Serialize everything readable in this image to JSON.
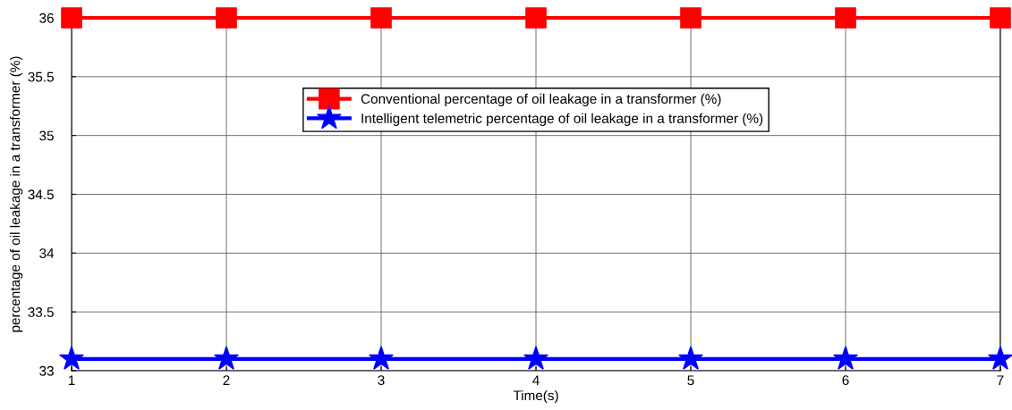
{
  "chart_data": {
    "type": "line",
    "xlabel": "Time(s)",
    "ylabel": "percentage of oil leakage in a transformer (%)",
    "x": [
      1,
      2,
      3,
      4,
      5,
      6,
      7
    ],
    "series": [
      {
        "name": "Conventional percentage of oil leakage in a transformer (%)",
        "color": "#ff0000",
        "marker": "square",
        "values": [
          36,
          36,
          36,
          36,
          36,
          36,
          36
        ]
      },
      {
        "name": "Intelligent telemetric percentage of oil leakage in a transformer (%)",
        "color": "#0000ff",
        "marker": "star",
        "values": [
          33.1,
          33.1,
          33.1,
          33.1,
          33.1,
          33.1,
          33.1
        ]
      }
    ],
    "xlim": [
      1,
      7
    ],
    "xticks": [
      1,
      2,
      3,
      4,
      5,
      6,
      7
    ],
    "ylim": [
      33,
      36
    ],
    "yticks": [
      33,
      33.5,
      34,
      34.5,
      35,
      35.5,
      36
    ],
    "grid": true,
    "legend": "top",
    "line_style": "solid"
  }
}
